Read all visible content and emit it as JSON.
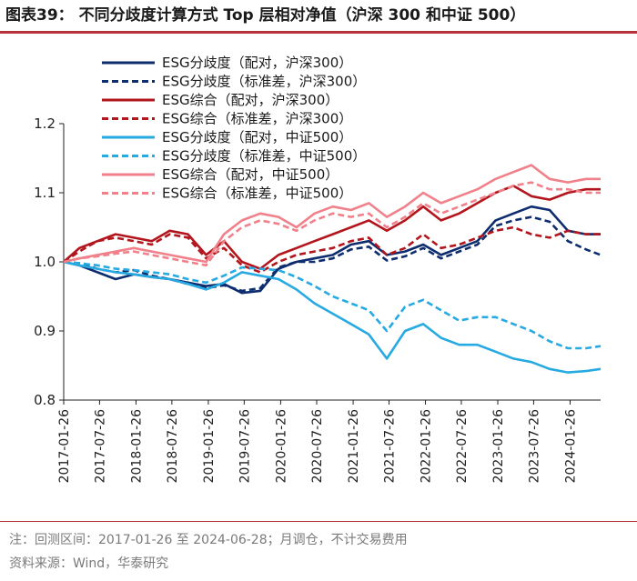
{
  "header": {
    "title": "图表39： 不同分歧度计算方式 Top 层相对净值（沪深 300 和中证 500）"
  },
  "footer": {
    "note": "注：回测区间：2017-01-26 至 2024-06-28；月调仓，不计交易费用",
    "source": "资料来源：Wind，华泰研究"
  },
  "colors": {
    "navy": "#0d2d6e",
    "darkred": "#b3151c",
    "cyan": "#26aae1",
    "pink": "#f0808a",
    "accent": "#b8323a"
  },
  "chart_data": {
    "type": "line",
    "title": "不同分歧度计算方式 Top 层相对净值（沪深 300 和中证 500）",
    "xlabel": "",
    "ylabel": "",
    "ylim": [
      0.8,
      1.2
    ],
    "yticks": [
      "0.8",
      "0.9",
      "1.0",
      "1.1",
      "1.2"
    ],
    "xticks": [
      "2017-01-26",
      "2017-07-26",
      "2018-01-26",
      "2018-07-26",
      "2019-01-26",
      "2019-07-26",
      "2020-01-26",
      "2020-07-26",
      "2021-01-26",
      "2021-07-26",
      "2022-01-26",
      "2022-07-26",
      "2023-01-26",
      "2023-07-26",
      "2024-01-26"
    ],
    "x_start": "2017-01-26",
    "x_end": "2024-06-28",
    "x": [
      "2017-01",
      "2017-04",
      "2017-07",
      "2017-10",
      "2018-01",
      "2018-04",
      "2018-07",
      "2018-10",
      "2019-01",
      "2019-04",
      "2019-07",
      "2019-10",
      "2020-01",
      "2020-04",
      "2020-07",
      "2020-10",
      "2021-01",
      "2021-04",
      "2021-07",
      "2021-10",
      "2022-01",
      "2022-04",
      "2022-07",
      "2022-10",
      "2023-01",
      "2023-04",
      "2023-07",
      "2023-10",
      "2024-01",
      "2024-04",
      "2024-06"
    ],
    "legend_position": "top-left",
    "series": [
      {
        "name": "ESG分歧度（配对，沪深300）",
        "color": "#0d2d6e",
        "dash": false,
        "values": [
          1.0,
          0.995,
          0.985,
          0.975,
          0.982,
          0.978,
          0.975,
          0.97,
          0.965,
          0.968,
          0.955,
          0.958,
          0.99,
          1.0,
          1.005,
          1.01,
          1.025,
          1.03,
          1.01,
          1.015,
          1.025,
          1.01,
          1.02,
          1.03,
          1.06,
          1.07,
          1.08,
          1.075,
          1.045,
          1.04,
          1.04
        ]
      },
      {
        "name": "ESG分歧度（标准差，沪深300）",
        "color": "#0d2d6e",
        "dash": true,
        "values": [
          1.0,
          0.998,
          0.99,
          0.985,
          0.988,
          0.98,
          0.975,
          0.968,
          0.962,
          0.966,
          0.958,
          0.962,
          0.992,
          1.0,
          1.0,
          1.005,
          1.018,
          1.022,
          1.002,
          1.008,
          1.02,
          1.005,
          1.015,
          1.025,
          1.052,
          1.06,
          1.065,
          1.058,
          1.03,
          1.018,
          1.01
        ]
      },
      {
        "name": "ESG综合（配对，沪深300）",
        "color": "#b3151c",
        "dash": false,
        "values": [
          1.0,
          1.02,
          1.03,
          1.04,
          1.035,
          1.03,
          1.045,
          1.04,
          1.01,
          1.03,
          1.0,
          0.99,
          1.01,
          1.02,
          1.03,
          1.04,
          1.05,
          1.06,
          1.045,
          1.06,
          1.08,
          1.06,
          1.07,
          1.085,
          1.1,
          1.11,
          1.095,
          1.09,
          1.1,
          1.105,
          1.105
        ]
      },
      {
        "name": "ESG综合（标准差，沪深300）",
        "color": "#b3151c",
        "dash": true,
        "values": [
          1.0,
          1.015,
          1.03,
          1.035,
          1.03,
          1.025,
          1.04,
          1.035,
          1.005,
          1.02,
          0.995,
          0.985,
          1.0,
          1.01,
          1.015,
          1.02,
          1.03,
          1.035,
          1.01,
          1.02,
          1.04,
          1.02,
          1.025,
          1.035,
          1.045,
          1.05,
          1.04,
          1.035,
          1.045,
          1.04,
          1.04
        ]
      },
      {
        "name": "ESG分歧度（配对，中证500）",
        "color": "#26aae1",
        "dash": false,
        "values": [
          1.0,
          0.995,
          0.99,
          0.985,
          0.982,
          0.978,
          0.975,
          0.968,
          0.96,
          0.97,
          0.985,
          0.98,
          0.975,
          0.96,
          0.94,
          0.925,
          0.91,
          0.895,
          0.86,
          0.9,
          0.91,
          0.89,
          0.88,
          0.88,
          0.87,
          0.86,
          0.855,
          0.845,
          0.84,
          0.842,
          0.845
        ]
      },
      {
        "name": "ESG分歧度（标准差，中证500）",
        "color": "#26aae1",
        "dash": true,
        "values": [
          1.0,
          0.998,
          0.995,
          0.99,
          0.988,
          0.985,
          0.982,
          0.975,
          0.97,
          0.98,
          0.992,
          0.99,
          0.988,
          0.978,
          0.965,
          0.95,
          0.94,
          0.93,
          0.9,
          0.935,
          0.945,
          0.93,
          0.915,
          0.92,
          0.92,
          0.91,
          0.9,
          0.885,
          0.875,
          0.875,
          0.878
        ]
      },
      {
        "name": "ESG综合（配对，中证500）",
        "color": "#f0808a",
        "dash": false,
        "values": [
          1.0,
          1.005,
          1.01,
          1.015,
          1.02,
          1.015,
          1.01,
          1.005,
          1.0,
          1.04,
          1.06,
          1.07,
          1.065,
          1.05,
          1.07,
          1.08,
          1.075,
          1.085,
          1.065,
          1.08,
          1.1,
          1.085,
          1.095,
          1.105,
          1.12,
          1.13,
          1.14,
          1.12,
          1.115,
          1.12,
          1.12
        ]
      },
      {
        "name": "ESG综合（标准差，中证500）",
        "color": "#f0808a",
        "dash": true,
        "values": [
          1.0,
          1.005,
          1.008,
          1.012,
          1.015,
          1.01,
          1.005,
          1.0,
          0.995,
          1.03,
          1.05,
          1.06,
          1.055,
          1.045,
          1.06,
          1.07,
          1.065,
          1.07,
          1.05,
          1.065,
          1.085,
          1.07,
          1.08,
          1.09,
          1.1,
          1.11,
          1.115,
          1.105,
          1.105,
          1.1,
          1.1
        ]
      }
    ]
  }
}
